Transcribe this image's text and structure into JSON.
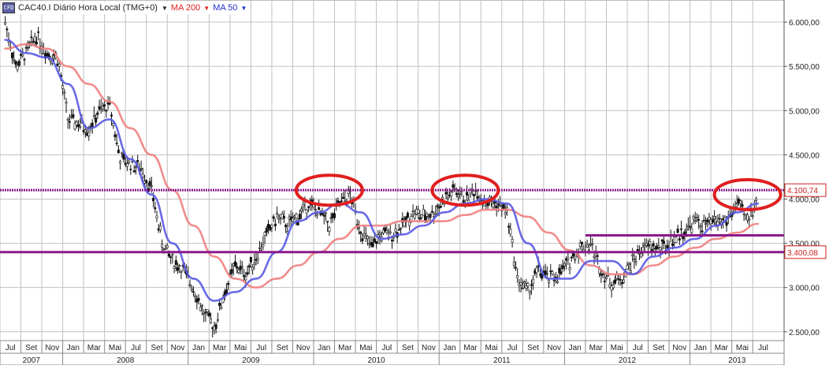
{
  "legend": {
    "instrument_icon": "CFD",
    "instrument": "CAC40.I Diário Hora Local (TMG+0)",
    "ma200_label": "MA 200",
    "ma50_label": "MA 50",
    "dropdown_icon": "caret-down-icon"
  },
  "colors": {
    "price": "#111111",
    "ma200": "#f08080",
    "ma50": "#5a5ae6",
    "levels": "#8b1a8b",
    "ellipse": "#e01e1e",
    "grid": "#c0c0c0"
  },
  "chart_data": {
    "type": "line",
    "title": "CAC40.I Diário Hora Local (TMG+0)",
    "ylim": [
      2400,
      6250
    ],
    "y_ticks": [
      "2.500,00",
      "3.000,00",
      "3.500,00",
      "4.000,00",
      "4.500,00",
      "5.000,00",
      "5.500,00",
      "6.000,00"
    ],
    "y_tick_values": [
      2500,
      3000,
      3500,
      4000,
      4500,
      5000,
      5500,
      6000
    ],
    "x_month_labels": [
      "Jul",
      "Set",
      "Nov",
      "Jan",
      "Mar",
      "Mai",
      "Jul",
      "Set",
      "Nov",
      "Jan",
      "Mar",
      "Mai",
      "Jul",
      "Set",
      "Nov",
      "Jan",
      "Mar",
      "Mai",
      "Jul",
      "Set",
      "Nov",
      "Jan",
      "Mar",
      "Mai",
      "Jul",
      "Set",
      "Nov",
      "Jan",
      "Mar",
      "Mai",
      "Jul",
      "Set",
      "Nov",
      "Jan",
      "Mar",
      "Mai",
      "Jul"
    ],
    "x_year_labels": [
      "2007",
      "2008",
      "2009",
      "2010",
      "2011",
      "2012",
      "2013"
    ],
    "x_year_start_index": [
      0,
      3,
      9,
      15,
      21,
      27,
      33
    ],
    "x_start": "2007-07",
    "x_end": "2013-09",
    "series": [
      {
        "name": "CAC40.I",
        "type": "candlestick",
        "x": [
          "2007-07",
          "2007-08",
          "2007-09",
          "2007-10",
          "2007-11",
          "2007-12",
          "2008-01",
          "2008-02",
          "2008-03",
          "2008-04",
          "2008-05",
          "2008-06",
          "2008-07",
          "2008-08",
          "2008-09",
          "2008-10",
          "2008-11",
          "2008-12",
          "2009-01",
          "2009-02",
          "2009-03",
          "2009-04",
          "2009-05",
          "2009-06",
          "2009-07",
          "2009-08",
          "2009-09",
          "2009-10",
          "2009-11",
          "2009-12",
          "2010-01",
          "2010-02",
          "2010-03",
          "2010-04",
          "2010-05",
          "2010-06",
          "2010-07",
          "2010-08",
          "2010-09",
          "2010-10",
          "2010-11",
          "2010-12",
          "2011-01",
          "2011-02",
          "2011-03",
          "2011-04",
          "2011-05",
          "2011-06",
          "2011-07",
          "2011-08",
          "2011-09",
          "2011-10",
          "2011-11",
          "2011-12",
          "2012-01",
          "2012-02",
          "2012-03",
          "2012-04",
          "2012-05",
          "2012-06",
          "2012-07",
          "2012-08",
          "2012-09",
          "2012-10",
          "2012-11",
          "2012-12",
          "2013-01",
          "2013-02",
          "2013-03",
          "2013-04",
          "2013-05",
          "2013-06",
          "2013-07"
        ],
        "values": [
          6000,
          5500,
          5650,
          5850,
          5650,
          5600,
          4900,
          4850,
          4800,
          5000,
          5050,
          4450,
          4400,
          4350,
          4100,
          3500,
          3300,
          3200,
          3000,
          2700,
          2550,
          2950,
          3250,
          3150,
          3350,
          3600,
          3800,
          3700,
          3800,
          3950,
          3850,
          3700,
          3950,
          4050,
          3650,
          3450,
          3600,
          3600,
          3700,
          3850,
          3800,
          3850,
          4000,
          4100,
          4000,
          4100,
          3950,
          3950,
          3850,
          3100,
          2950,
          3200,
          3100,
          3150,
          3300,
          3450,
          3500,
          3200,
          3050,
          3100,
          3300,
          3450,
          3450,
          3450,
          3550,
          3650,
          3750,
          3700,
          3750,
          3750,
          3950,
          3750,
          4050
        ]
      },
      {
        "name": "MA 200",
        "x": [
          "2007-07",
          "2007-09",
          "2007-11",
          "2008-01",
          "2008-03",
          "2008-05",
          "2008-07",
          "2008-09",
          "2008-11",
          "2009-01",
          "2009-03",
          "2009-05",
          "2009-07",
          "2009-09",
          "2009-11",
          "2010-01",
          "2010-03",
          "2010-05",
          "2010-07",
          "2010-09",
          "2010-11",
          "2011-01",
          "2011-03",
          "2011-05",
          "2011-07",
          "2011-09",
          "2011-11",
          "2012-01",
          "2012-03",
          "2012-05",
          "2012-07",
          "2012-09",
          "2012-11",
          "2013-01",
          "2013-03",
          "2013-05",
          "2013-07"
        ],
        "values": [
          5700,
          5750,
          5700,
          5500,
          5300,
          5100,
          4800,
          4500,
          4100,
          3700,
          3350,
          3100,
          3000,
          3100,
          3250,
          3400,
          3550,
          3700,
          3700,
          3750,
          3750,
          3750,
          3820,
          3880,
          3880,
          3800,
          3620,
          3420,
          3250,
          3150,
          3150,
          3250,
          3350,
          3450,
          3550,
          3620,
          3720
        ]
      },
      {
        "name": "MA 50",
        "x": [
          "2007-07",
          "2007-09",
          "2007-11",
          "2008-01",
          "2008-03",
          "2008-05",
          "2008-07",
          "2008-09",
          "2008-11",
          "2009-01",
          "2009-03",
          "2009-05",
          "2009-07",
          "2009-09",
          "2009-11",
          "2010-01",
          "2010-03",
          "2010-05",
          "2010-07",
          "2010-09",
          "2010-11",
          "2011-01",
          "2011-03",
          "2011-05",
          "2011-07",
          "2011-09",
          "2011-11",
          "2012-01",
          "2012-03",
          "2012-05",
          "2012-07",
          "2012-09",
          "2012-11",
          "2013-01",
          "2013-03",
          "2013-05",
          "2013-07"
        ],
        "values": [
          5800,
          5650,
          5600,
          5300,
          4800,
          4900,
          4450,
          4050,
          3500,
          3100,
          2850,
          2950,
          3100,
          3400,
          3750,
          3850,
          3950,
          3850,
          3550,
          3600,
          3700,
          3850,
          3950,
          4000,
          3950,
          3500,
          3100,
          3100,
          3300,
          3300,
          3150,
          3350,
          3450,
          3550,
          3700,
          3850,
          3950
        ]
      }
    ],
    "horizontal_levels": [
      {
        "value": 4100.74,
        "label": "4.100,74",
        "style": "dotted"
      },
      {
        "value": 3400.08,
        "label": "3.400,08",
        "style": "solid"
      },
      {
        "value": 3590,
        "label": "",
        "style": "solid",
        "from": "2012-03"
      }
    ],
    "annotations": [
      {
        "type": "ellipse",
        "center_x": "2010-02",
        "center_y": 4100
      },
      {
        "type": "ellipse",
        "center_x": "2011-03",
        "center_y": 4100
      },
      {
        "type": "ellipse",
        "center_x": "2013-06",
        "center_y": 4050
      }
    ],
    "grid": true,
    "legend_position": "top-left"
  }
}
